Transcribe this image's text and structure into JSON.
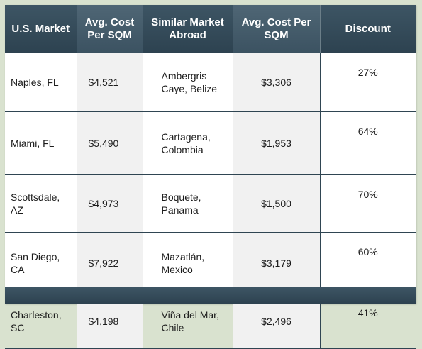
{
  "headers": [
    "U.S. Market",
    "Avg. Cost Per SQM",
    "Similar Market Abroad",
    "Avg. Cost Per SQM",
    "Discount"
  ],
  "rows": [
    {
      "market": "Naples, FL",
      "us_cost": "$4,521",
      "abroad": "Ambergris Caye, Belize",
      "abroad_cost": "$3,306",
      "discount": "27%"
    },
    {
      "market": "Miami, FL",
      "us_cost": "$5,490",
      "abroad": "Cartagena, Colombia",
      "abroad_cost": "$1,953",
      "discount": "64%"
    },
    {
      "market": "Scottsdale, AZ",
      "us_cost": "$4,973",
      "abroad": "Boquete, Panama",
      "abroad_cost": "$1,500",
      "discount": "70%"
    },
    {
      "market": "San Diego, CA",
      "us_cost": "$7,922",
      "abroad": "Mazatlán, Mexico",
      "abroad_cost": "$3,179",
      "discount": "60%"
    },
    {
      "market": "Charleston, SC",
      "us_cost": "$4,198",
      "abroad": "Viña del Mar, Chile",
      "abroad_cost": "$2,496",
      "discount": "41%"
    }
  ],
  "colors": {
    "header": "#2d4250",
    "header_light": "#4f6675",
    "background": "#d9e2cf"
  }
}
